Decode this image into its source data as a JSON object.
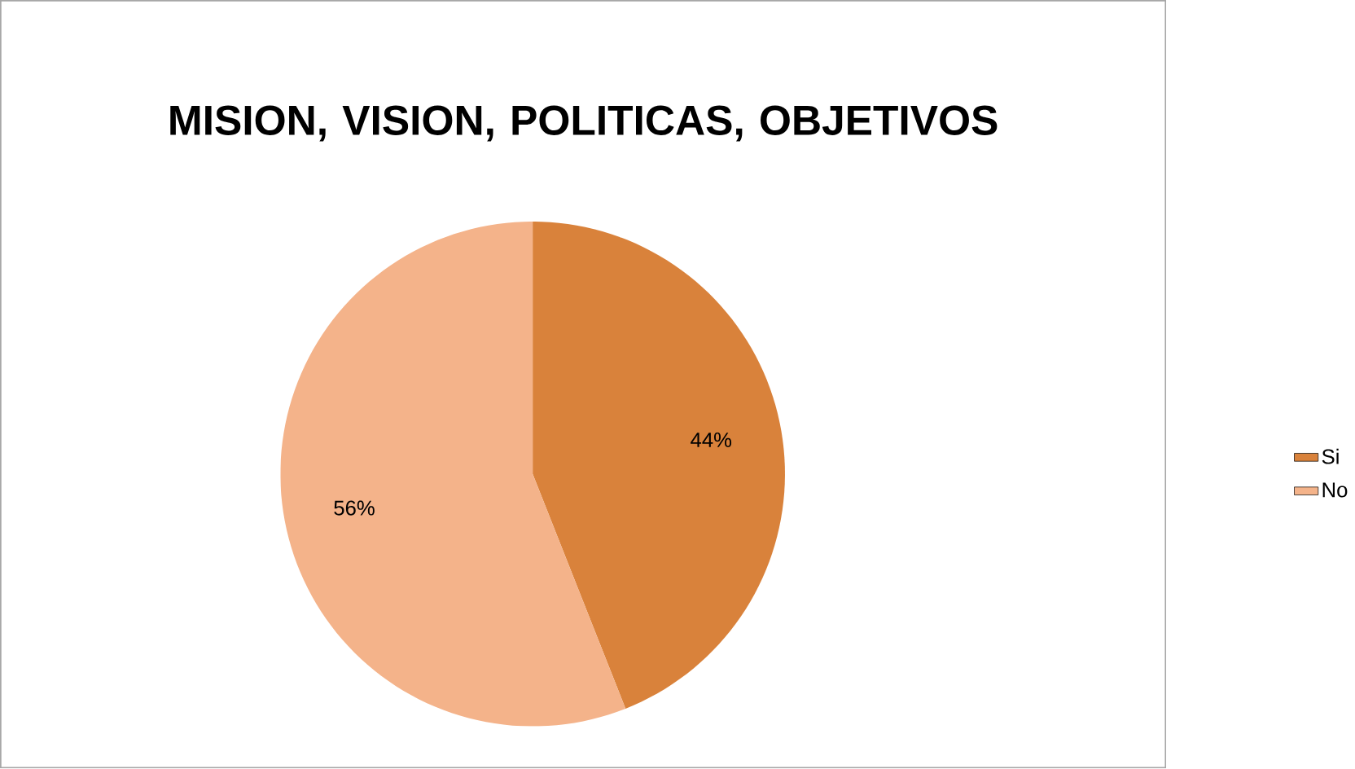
{
  "chart_data": {
    "type": "pie",
    "title": "MISION, VISION, POLITICAS, OBJETIVOS",
    "categories": [
      "Si",
      "No"
    ],
    "values": [
      44,
      56
    ],
    "value_labels": [
      "44%",
      "56%"
    ],
    "colors": [
      "#d9823b",
      "#f4b38a"
    ],
    "legend": "right"
  }
}
